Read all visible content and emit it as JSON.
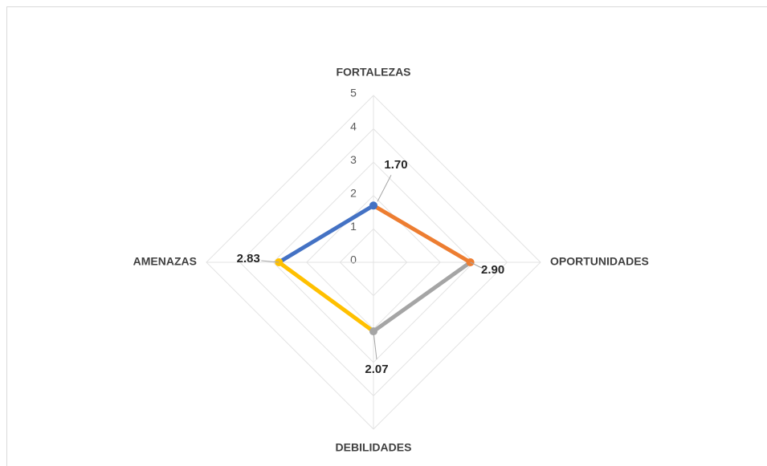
{
  "chart_data": {
    "type": "radar",
    "categories": [
      "FORTALEZAS",
      "OPORTUNIDADES",
      "DEBILIDADES",
      "AMENAZAS"
    ],
    "values": [
      1.7,
      2.9,
      2.07,
      2.83
    ],
    "value_labels": [
      "1.70",
      "2.90",
      "2.07",
      "2.83"
    ],
    "point_colors": [
      "#4472c4",
      "#ed7d31",
      "#a5a5a5",
      "#ffc000"
    ],
    "ylim": [
      0,
      5
    ],
    "yticks": [
      0,
      1,
      2,
      3,
      4,
      5
    ],
    "grid": true
  }
}
